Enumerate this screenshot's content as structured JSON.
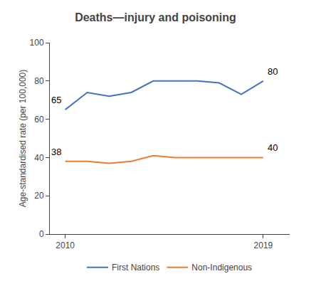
{
  "chart_data": {
    "type": "line",
    "title": "Deaths—injury and poisoning",
    "ylabel": "Age-standardised rate (per 100,000)",
    "x": [
      2010,
      2011,
      2012,
      2013,
      2014,
      2015,
      2016,
      2017,
      2018,
      2019
    ],
    "series": [
      {
        "name": "First Nations",
        "color": "#4472C4",
        "values": [
          65,
          74,
          72,
          74,
          80,
          80,
          80,
          79,
          73,
          80
        ]
      },
      {
        "name": "Non-Indigenous",
        "color": "#ED7D31",
        "values": [
          38,
          38,
          37,
          38,
          41,
          40,
          40,
          40,
          40,
          40
        ]
      }
    ],
    "xlim": [
      2009.3,
      2020.2
    ],
    "xticks": [
      2010,
      2019
    ],
    "ylim": [
      0,
      100
    ],
    "yticks": [
      0,
      20,
      40,
      60,
      80,
      100
    ],
    "grid": false,
    "legend": "bottom",
    "annotations": [
      {
        "text": "65",
        "x": 2010,
        "y": 65
      },
      {
        "text": "38",
        "x": 2010,
        "y": 38
      },
      {
        "text": "80",
        "x": 2019,
        "y": 80
      },
      {
        "text": "40",
        "x": 2019,
        "y": 40
      }
    ]
  }
}
